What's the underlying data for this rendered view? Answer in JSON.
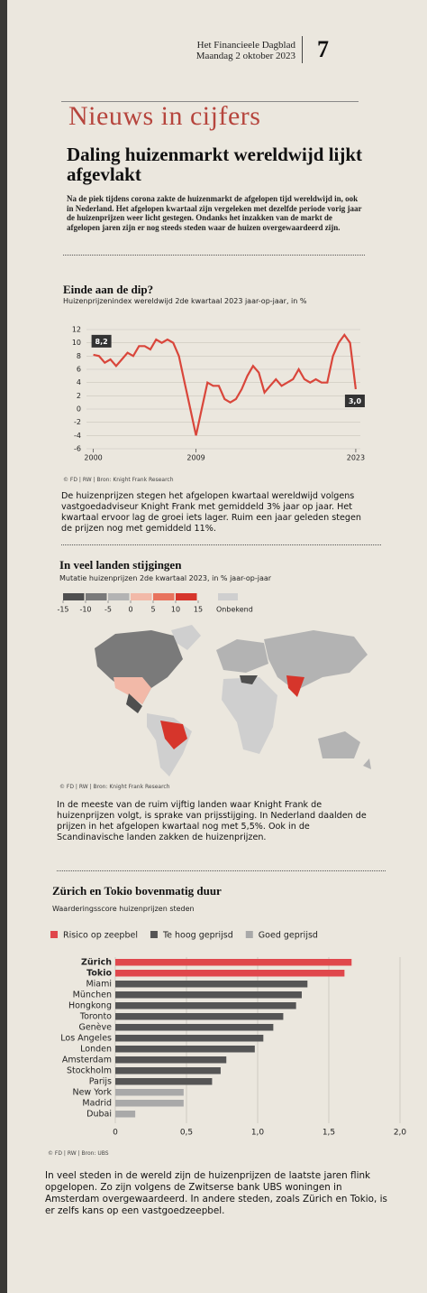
{
  "header": {
    "paper": "Het Financieele Dagblad",
    "date": "Maandag 2 oktober 2023",
    "page": "7"
  },
  "section": "Nieuws in cijfers",
  "headline": "Daling huizenmarkt wereldwijd lijkt afgevlakt",
  "intro": "Na de piek tijdens corona zakte de huizenmarkt de afgelopen tijd wereldwijd in, ook in Nederland. Het afgelopen kwartaal zijn vergeleken met dezelfde periode vorig jaar de huizenprijzen weer licht gestegen. Ondanks het inzakken van de markt de afgelopen jaren zijn er nog steeds steden waar de huizen overgewaardeerd zijn.",
  "chart_data": [
    {
      "type": "line",
      "title": "Einde aan de dip?",
      "subtitle": "Huizenprijzenindex wereldwijd 2de kwartaal 2023 jaar-op-jaar, in %",
      "x": [
        2000,
        2000.5,
        2001,
        2001.5,
        2002,
        2002.5,
        2003,
        2003.5,
        2004,
        2004.5,
        2005,
        2005.5,
        2006,
        2006.5,
        2007,
        2007.5,
        2008,
        2008.5,
        2009,
        2009.5,
        2010,
        2010.5,
        2011,
        2011.5,
        2012,
        2012.5,
        2013,
        2013.5,
        2014,
        2014.5,
        2015,
        2015.5,
        2016,
        2016.5,
        2017,
        2017.5,
        2018,
        2018.5,
        2019,
        2019.5,
        2020,
        2020.5,
        2021,
        2021.5,
        2022,
        2022.5,
        2023
      ],
      "values": [
        8.2,
        8,
        7,
        7.5,
        6.5,
        7.5,
        8.5,
        8,
        9.5,
        9.5,
        9,
        10.5,
        10,
        10.5,
        10,
        8,
        4,
        0,
        -4,
        0,
        4,
        3.5,
        3.5,
        1.5,
        1,
        1.5,
        3,
        5,
        6.5,
        5.5,
        2.5,
        3.5,
        4.5,
        3.5,
        4,
        4.5,
        6,
        4.5,
        4,
        4.5,
        4,
        4,
        8,
        10,
        11.2,
        10,
        3
      ],
      "value_labels": [
        "8,2",
        null,
        null,
        null,
        null,
        null,
        null,
        null,
        null,
        null,
        null,
        null,
        null,
        null,
        null,
        null,
        null,
        null,
        null,
        null,
        null,
        null,
        null,
        null,
        null,
        null,
        null,
        null,
        null,
        null,
        null,
        null,
        null,
        null,
        null,
        null,
        null,
        null,
        null,
        null,
        null,
        null,
        null,
        null,
        null,
        null,
        "3,0"
      ],
      "color": "#d9463b",
      "xlim": [
        1999.4,
        2023.4
      ],
      "xticks": [
        2000,
        2009,
        2023
      ],
      "ylim": [
        -6,
        12
      ],
      "yticks": [
        12,
        10,
        8,
        6,
        4,
        2,
        0,
        -2,
        -4,
        -6
      ],
      "grid": true,
      "source": "© FD | RW | Bron: Knight Frank Research",
      "caption": "De huizenprijzen stegen het afgelopen kwartaal wereldwijd volgens vastgoedadviseur Knight Frank met gemiddeld 3% jaar op jaar. Het kwartaal ervoor lag de groei iets lager. Ruim een jaar geleden stegen de prijzen nog met gemiddeld 11%."
    },
    {
      "type": "map",
      "title": "In veel landen stijgingen",
      "subtitle": "Mutatie huizenprijzen 2de kwartaal 2023, in % jaar-op-jaar",
      "legend": {
        "ticks": [
          -15,
          -10,
          -5,
          0,
          5,
          10,
          15
        ],
        "colors": [
          "#4f4f4f",
          "#7a7a7a",
          "#b3b3b3",
          "#f2b9a8",
          "#e8735d",
          "#d6352b"
        ],
        "unknown_label": "Onbekend",
        "unknown_color": "#cfcfcf"
      },
      "source": "© FD | RW | Bron: Knight Frank Research",
      "caption": "In de meeste van de ruim vijftig landen waar Knight Frank de huizenprijzen volgt, is sprake van prijsstijging. In Nederland daalden de prijzen in het afgelopen kwartaal nog met 5,5%. Ook in de Scandinavische landen zakken de huizenprijzen."
    },
    {
      "type": "bar",
      "title": "Zürich en Tokio bovenmatig duur",
      "subtitle": "Waarderingsscore huizenprijzen steden",
      "categories": [
        "Zürich",
        "Tokio",
        "Miami",
        "München",
        "Hongkong",
        "Toronto",
        "Genève",
        "Los Angeles",
        "Londen",
        "Amsterdam",
        "Stockholm",
        "Parijs",
        "New York",
        "Madrid",
        "Dubai"
      ],
      "series": [
        {
          "name": "Risico op zeepbel",
          "color": "#e0474c",
          "values": [
            1.66,
            1.61,
            null,
            null,
            null,
            null,
            null,
            null,
            null,
            null,
            null,
            null,
            null,
            null,
            null
          ]
        },
        {
          "name": "Te hoog geprijsd",
          "color": "#555555",
          "values": [
            null,
            null,
            1.35,
            1.31,
            1.27,
            1.18,
            1.11,
            1.04,
            0.98,
            0.78,
            0.74,
            0.68,
            null,
            null,
            null
          ]
        },
        {
          "name": "Goed geprijsd",
          "color": "#a9a9a9",
          "values": [
            null,
            null,
            null,
            null,
            null,
            null,
            null,
            null,
            null,
            null,
            null,
            null,
            0.48,
            0.48,
            0.14
          ]
        }
      ],
      "xlim": [
        0,
        2.0
      ],
      "xticks": [
        0,
        {
          "value": 0.5,
          "label": "0,5"
        },
        {
          "value": 1.0,
          "label": "1,0"
        },
        {
          "value": 1.5,
          "label": "1,5"
        },
        {
          "value": 2.0,
          "label": "2,0"
        }
      ],
      "grid": true,
      "source": "© FD | RW | Bron: UBS",
      "caption": "In veel steden in de wereld zijn de huizenprijzen de laatste jaren flink opgelopen. Zo zijn volgens de Zwitserse bank UBS woningen in Amsterdam overgewaardeerd. In andere steden, zoals Zürich en Tokio, is er zelfs kans op een vastgoedzeepbel."
    }
  ]
}
